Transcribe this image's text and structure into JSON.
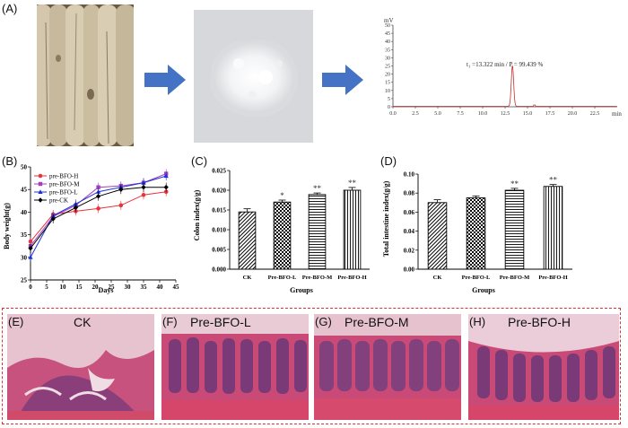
{
  "panels": {
    "a": "(A)",
    "b": "(B)",
    "c": "(C)",
    "d": "(D)",
    "e": "(E)",
    "f": "(F)",
    "g": "(G)",
    "h": "(H)"
  },
  "hplc": {
    "units_y": "mV",
    "units_x": "min",
    "annotation": "t₁ =13.322 min / P = 99.439 %",
    "peak_time": 13.322,
    "purity": 99.439,
    "yticks": [
      0,
      5,
      10,
      15,
      20,
      25,
      30,
      35,
      40,
      45,
      50
    ],
    "xticks": [
      0,
      2.5,
      5,
      7.5,
      10,
      12.5,
      15,
      17.5,
      20,
      22.5
    ],
    "xtick_labels": [
      "0.0",
      "2.5",
      "5.0",
      "7.5",
      "10.0",
      "12.5",
      "15.0",
      "17.5",
      "20.0",
      "22.5"
    ],
    "peak_height": 25
  },
  "chart_data": [
    {
      "type": "line",
      "xlabel": "Days",
      "ylabel": "Body weight(g)",
      "xlim": [
        0,
        45
      ],
      "ylim": [
        25,
        50
      ],
      "xticks": [
        0,
        5,
        10,
        15,
        20,
        25,
        30,
        35,
        40,
        45
      ],
      "yticks": [
        25,
        30,
        35,
        40,
        45,
        50
      ],
      "legend_position": "top-left",
      "x": [
        0,
        7,
        14,
        21,
        28,
        35,
        42
      ],
      "series": [
        {
          "name": "pre-BFO-H",
          "color": "#e8323c",
          "marker": "circle",
          "values": [
            33.5,
            39.5,
            40.2,
            40.8,
            41.5,
            43.8,
            44.5
          ]
        },
        {
          "name": "pre-BFO-M",
          "color": "#a040c0",
          "marker": "square",
          "values": [
            32.5,
            39.0,
            41.5,
            45.5,
            45.8,
            46.5,
            48.5
          ]
        },
        {
          "name": "pre-BFO-L",
          "color": "#2030d8",
          "marker": "triangle",
          "values": [
            30.0,
            39.2,
            41.8,
            44.5,
            45.5,
            46.5,
            48.0
          ]
        },
        {
          "name": "pre-CK",
          "color": "#000000",
          "marker": "diamond",
          "values": [
            32.0,
            38.5,
            41.0,
            43.5,
            45.0,
            45.5,
            45.5
          ]
        }
      ]
    },
    {
      "type": "bar",
      "xlabel": "Groups",
      "ylabel": "Colon index(g/g)",
      "ylim": [
        0,
        0.025
      ],
      "yticks": [
        0.0,
        0.005,
        0.01,
        0.015,
        0.02,
        0.025
      ],
      "ytick_labels": [
        "0.000",
        "0.005",
        "0.010",
        "0.015",
        "0.020",
        "0.025"
      ],
      "categories": [
        "CK",
        "Pre-BFO-L",
        "Pre-BFO-M",
        "Pre-BFO-H"
      ],
      "values": [
        0.0145,
        0.017,
        0.0189,
        0.02
      ],
      "errors": [
        0.0008,
        0.0005,
        0.0004,
        0.0007
      ],
      "significance": [
        "",
        "*",
        "**",
        "**"
      ]
    },
    {
      "type": "bar",
      "xlabel": "Groups",
      "ylabel": "Total intestine index(g/g)",
      "ylim": [
        0,
        0.1
      ],
      "yticks": [
        0.0,
        0.02,
        0.04,
        0.06,
        0.08,
        0.1
      ],
      "ytick_labels": [
        "0.00",
        "0.02",
        "0.04",
        "0.06",
        "0.08",
        "0.10"
      ],
      "categories": [
        "CK",
        "Pre-BFO-L",
        "Pre-BFO-M",
        "Pre-BFO-H"
      ],
      "values": [
        0.07,
        0.075,
        0.083,
        0.087
      ],
      "errors": [
        0.003,
        0.002,
        0.002,
        0.002
      ],
      "significance": [
        "",
        "",
        "**",
        "**"
      ]
    }
  ],
  "histology": {
    "e": "CK",
    "f": "Pre-BFO-L",
    "g": "Pre-BFO-M",
    "h": "Pre-BFO-H"
  },
  "colors": {
    "arrow": "#4472c4",
    "dashed_border": "#e03030",
    "tissue": "#c94a76",
    "lumen": "#f2d8e0"
  }
}
